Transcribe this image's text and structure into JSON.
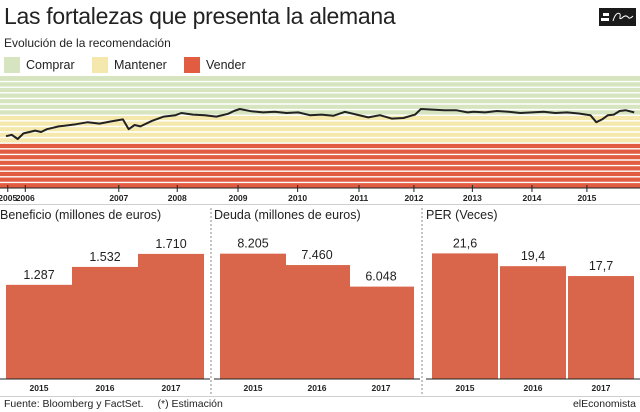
{
  "header": {
    "title": "Las fortalezas que presenta la alemana",
    "subtitle": "Evolución de la recomendación"
  },
  "footer": {
    "source": "Fuente: Bloomberg y FactSet.",
    "note": "(*) Estimación",
    "brand": "elEconomista"
  },
  "colors": {
    "comprar": "#d6e5bf",
    "mantener": "#f5e8ad",
    "vender": "#e15c40",
    "bar": "#d9664a",
    "line": "#222222"
  },
  "chart_data": [
    {
      "type": "line",
      "title": "",
      "legend": [
        "Comprar",
        "Mantener",
        "Vender"
      ],
      "legend_position": "top",
      "x_ticks": [
        "2005",
        "2006",
        "2007",
        "2008",
        "2009",
        "2010",
        "2011",
        "2012",
        "2013",
        "2014",
        "2015"
      ],
      "bands": [
        {
          "name": "Comprar",
          "from": 3.6,
          "to": 5.0
        },
        {
          "name": "Mantener",
          "from": 2.6,
          "to": 3.6
        },
        {
          "name": "Vender",
          "from": 1.0,
          "to": 2.6
        }
      ],
      "ylim": [
        1.0,
        5.0
      ],
      "grid": "horizontal",
      "x": [
        2005.0,
        2005.1,
        2005.2,
        2005.3,
        2005.4,
        2005.5,
        2005.6,
        2005.7,
        2005.8,
        2005.9,
        2006.0,
        2006.2,
        2006.4,
        2006.6,
        2006.8,
        2007.0,
        2007.1,
        2007.2,
        2007.3,
        2007.5,
        2007.7,
        2007.9,
        2008.0,
        2008.2,
        2008.4,
        2008.6,
        2008.8,
        2008.9,
        2009.0,
        2009.2,
        2009.4,
        2009.6,
        2009.8,
        2010.0,
        2010.2,
        2010.4,
        2010.6,
        2010.8,
        2011.0,
        2011.2,
        2011.4,
        2011.6,
        2011.8,
        2012.0,
        2012.1,
        2012.3,
        2012.5,
        2012.7,
        2012.9,
        2013.0,
        2013.2,
        2013.4,
        2013.6,
        2013.8,
        2014.0,
        2014.2,
        2014.4,
        2014.6,
        2014.8,
        2015.0,
        2015.1,
        2015.2,
        2015.3,
        2015.4,
        2015.5,
        2015.6,
        2015.75
      ],
      "y": [
        2.85,
        2.9,
        2.75,
        2.95,
        3.0,
        3.05,
        3.0,
        3.1,
        3.15,
        3.2,
        3.22,
        3.28,
        3.35,
        3.3,
        3.38,
        3.45,
        3.1,
        3.25,
        3.2,
        3.4,
        3.55,
        3.6,
        3.68,
        3.62,
        3.6,
        3.55,
        3.65,
        3.75,
        3.82,
        3.74,
        3.7,
        3.72,
        3.68,
        3.7,
        3.6,
        3.62,
        3.58,
        3.72,
        3.62,
        3.52,
        3.6,
        3.48,
        3.5,
        3.62,
        3.82,
        3.8,
        3.78,
        3.78,
        3.7,
        3.72,
        3.7,
        3.75,
        3.72,
        3.68,
        3.7,
        3.72,
        3.68,
        3.7,
        3.66,
        3.6,
        3.35,
        3.45,
        3.6,
        3.62,
        3.75,
        3.78,
        3.7
      ]
    },
    {
      "type": "bar",
      "title": "Beneficio (millones de euros)",
      "categories": [
        "2015",
        "2016",
        "2017"
      ],
      "values": [
        1287,
        1532,
        1710
      ],
      "labels": [
        "1.287",
        "1.532",
        "1.710"
      ],
      "ylim": [
        0,
        1900
      ]
    },
    {
      "type": "bar",
      "title": "Deuda (millones de euros)",
      "categories": [
        "2015",
        "2016",
        "2017"
      ],
      "values": [
        8205,
        7460,
        6048
      ],
      "labels": [
        "8.205",
        "7.460",
        "6.048"
      ],
      "ylim": [
        0,
        9100
      ]
    },
    {
      "type": "bar",
      "title": "PER (Veces)",
      "categories": [
        "2015",
        "2016",
        "2017"
      ],
      "values": [
        21.6,
        19.4,
        17.7
      ],
      "labels": [
        "21,6",
        "19,4",
        "17,7"
      ],
      "ylim": [
        0,
        23.9
      ]
    }
  ]
}
